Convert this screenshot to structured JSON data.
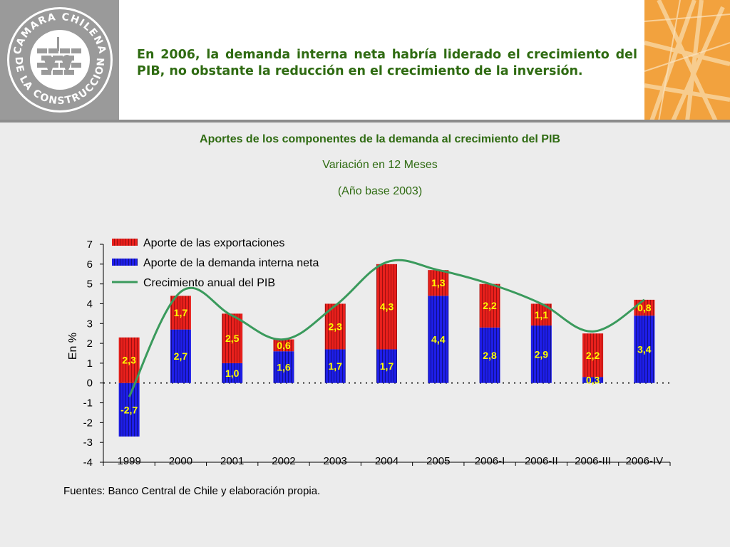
{
  "header": {
    "logo_text_top": "CAMARA CHILENA",
    "logo_text_bottom": "DE LA CONSTRUCCION",
    "title": "En 2006, la demanda interna neta habría liderado el crecimiento del PIB, no obstante la reducción en el crecimiento de la inversión."
  },
  "colors": {
    "export_bar": "#e8201c",
    "domestic_bar": "#1e1ee8",
    "gdp_line": "#3a9a5c",
    "label_text": "#ffff00",
    "title_green": "#2f6b12"
  },
  "chart_data": {
    "type": "bar",
    "title": "Aportes de los componentes de la demanda al crecimiento del PIB",
    "subtitle": "Variación en 12 Meses",
    "subtitle2": "(Año base 2003)",
    "ylabel": "En %",
    "xlabel": "",
    "ylim": [
      -4,
      7
    ],
    "yticks": [
      "7",
      "6",
      "5",
      "4",
      "3",
      "2",
      "1",
      "0",
      "-1",
      "-2",
      "-3",
      "-4"
    ],
    "categories": [
      "1999",
      "2000",
      "2001",
      "2002",
      "2003",
      "2004",
      "2005",
      "2006-I",
      "2006-II",
      "2006-III",
      "2006-IV"
    ],
    "stacked": true,
    "legend_position": "top-left",
    "series": [
      {
        "name": "Aporte de las exportaciones",
        "type": "bar",
        "values": [
          2.3,
          1.7,
          2.5,
          0.6,
          2.3,
          4.3,
          1.3,
          2.2,
          1.1,
          2.2,
          0.8
        ],
        "labels": [
          "2,3",
          "1,7",
          "2,5",
          "0,6",
          "2,3",
          "4,3",
          "1,3",
          "2,2",
          "1,1",
          "2,2",
          "0,8"
        ]
      },
      {
        "name": "Aporte de la demanda interna neta",
        "type": "bar",
        "values": [
          -2.7,
          2.7,
          1.0,
          1.6,
          1.7,
          1.7,
          4.4,
          2.8,
          2.9,
          0.3,
          3.4
        ],
        "labels": [
          "-2,7",
          "2,7",
          "1,0",
          "1,6",
          "1,7",
          "1,7",
          "4,4",
          "2,8",
          "2,9",
          "0,3",
          "3,4"
        ]
      },
      {
        "name": "Crecimiento anual del PIB",
        "type": "line",
        "values": [
          -0.7,
          4.6,
          3.4,
          2.2,
          3.9,
          6.1,
          5.7,
          5.0,
          4.0,
          2.6,
          4.2
        ]
      }
    ]
  },
  "source": "Fuentes: Banco Central de Chile y elaboración propia."
}
